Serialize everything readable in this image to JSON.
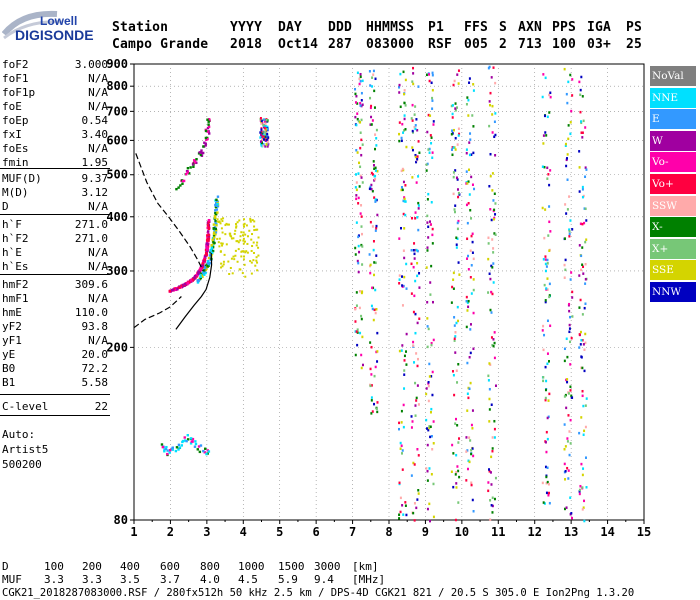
{
  "logo": {
    "line1": "Lowell",
    "line2": "DIGISONDE"
  },
  "header": {
    "labels": [
      "Station",
      "YYYY",
      "DAY",
      "DDD",
      "HHMMSS",
      "P1",
      "FFS",
      "S",
      "AXN",
      "PPS",
      "IGA",
      "PS"
    ],
    "values": [
      "Campo Grande",
      "2018",
      "Oct14",
      "287",
      "083000",
      "RSF",
      "005",
      "2",
      "713",
      "100",
      "03+",
      "25"
    ]
  },
  "params": [
    {
      "name": "foF2",
      "value": "3.000"
    },
    {
      "name": "foF1",
      "value": "N/A"
    },
    {
      "name": "foF1p",
      "value": "N/A"
    },
    {
      "name": "foE",
      "value": "N/A"
    },
    {
      "name": "foEp",
      "value": "0.54"
    },
    {
      "name": "fxI",
      "value": "3.40"
    },
    {
      "name": "foEs",
      "value": "N/A"
    },
    {
      "name": "fmin",
      "value": "1.95"
    },
    {
      "name": "MUF(D)",
      "value": "9.37"
    },
    {
      "name": "M(D)",
      "value": "3.12"
    },
    {
      "name": "D",
      "value": "N/A"
    },
    {
      "name": "h`F",
      "value": "271.0"
    },
    {
      "name": "h`F2",
      "value": "271.0"
    },
    {
      "name": "h`E",
      "value": "N/A"
    },
    {
      "name": "h`Es",
      "value": "N/A"
    },
    {
      "name": "hmF2",
      "value": "309.6"
    },
    {
      "name": "hmF1",
      "value": "N/A"
    },
    {
      "name": "hmE",
      "value": "110.0"
    },
    {
      "name": "yF2",
      "value": "93.8"
    },
    {
      "name": "yF1",
      "value": "N/A"
    },
    {
      "name": "yE",
      "value": "20.0"
    },
    {
      "name": "B0",
      "value": "72.2"
    },
    {
      "name": "B1",
      "value": "5.58"
    },
    {
      "name": "C-level",
      "value": "22"
    }
  ],
  "auto": {
    "line1": "Auto:",
    "line2": "Artist5",
    "line3": "500200"
  },
  "legend": [
    {
      "label": "NoVal",
      "color": "#7f7f7f"
    },
    {
      "label": "NNE",
      "color": "#00e0ff"
    },
    {
      "label": "E",
      "color": "#3399ff"
    },
    {
      "label": "W",
      "color": "#a000a0"
    },
    {
      "label": "Vo-",
      "color": "#ff00aa"
    },
    {
      "label": "Vo+",
      "color": "#ff0040"
    },
    {
      "label": "SSW",
      "color": "#ffaaaa"
    },
    {
      "label": "X-",
      "color": "#008000"
    },
    {
      "label": "X+",
      "color": "#77c777"
    },
    {
      "label": "SSE",
      "color": "#d4d400"
    },
    {
      "label": "NNW",
      "color": "#0000c0"
    }
  ],
  "footer": {
    "d_label": "D",
    "d_values": [
      "100",
      "200",
      "400",
      "600",
      "800",
      "1000",
      "1500",
      "3000"
    ],
    "d_unit": "[km]",
    "muf_label": "MUF",
    "muf_values": [
      "3.3",
      "3.3",
      "3.5",
      "3.7",
      "4.0",
      "4.5",
      "5.9",
      "9.4"
    ],
    "muf_unit": "[MHz]",
    "info": "CGK21_2018287083000.RSF / 280fx512h 50 kHz 2.5 km / DPS-4D CGK21 821 / 20.5 S 305.0 E Ion2Png 1.3.20"
  },
  "chart_data": {
    "type": "scatter",
    "x_ticks": [
      1,
      2,
      3,
      4,
      5,
      6,
      7,
      8,
      9,
      10,
      11,
      12,
      13,
      14,
      15
    ],
    "y_ticks": [
      80,
      200,
      300,
      400,
      500,
      600,
      700,
      800,
      900
    ],
    "xlim": [
      1,
      15
    ],
    "ylim": [
      80,
      900
    ],
    "y_scale": "log",
    "grid": true,
    "profile_curve": [
      [
        2.15,
        220
      ],
      [
        2.4,
        235
      ],
      [
        2.65,
        250
      ],
      [
        2.85,
        262
      ],
      [
        2.98,
        272
      ],
      [
        3.08,
        290
      ],
      [
        3.13,
        310
      ],
      [
        3.12,
        330
      ]
    ],
    "true_height_profile": [
      [
        1.05,
        560
      ],
      [
        1.35,
        480
      ],
      [
        1.65,
        430
      ],
      [
        1.95,
        400
      ],
      [
        2.25,
        370
      ],
      [
        2.55,
        340
      ],
      [
        2.75,
        318
      ],
      [
        2.9,
        300
      ]
    ],
    "trace_o_mode": [
      [
        1.95,
        271
      ],
      [
        2.15,
        275
      ],
      [
        2.35,
        280
      ],
      [
        2.55,
        287
      ],
      [
        2.7,
        295
      ],
      [
        2.85,
        310
      ],
      [
        2.95,
        330
      ],
      [
        3.0,
        355
      ],
      [
        3.02,
        400
      ]
    ],
    "trace_x_mode": [
      [
        2.7,
        285
      ],
      [
        2.9,
        300
      ],
      [
        3.05,
        320
      ],
      [
        3.15,
        350
      ],
      [
        3.22,
        400
      ],
      [
        3.25,
        450
      ]
    ],
    "trace_hooks": [
      [
        2.15,
        460
      ],
      [
        2.5,
        520
      ],
      [
        2.8,
        560
      ],
      [
        2.95,
        610
      ],
      [
        3.05,
        680
      ]
    ],
    "interference_bands": [
      {
        "x": 4.55,
        "y0": 585,
        "y1": 680
      },
      {
        "x": 7.15,
        "y0": 180,
        "y1": 900
      },
      {
        "x": 7.55,
        "y0": 140,
        "y1": 880
      },
      {
        "x": 8.35,
        "y0": 80,
        "y1": 900
      },
      {
        "x": 8.7,
        "y0": 80,
        "y1": 900
      },
      {
        "x": 9.1,
        "y0": 80,
        "y1": 900
      },
      {
        "x": 9.8,
        "y0": 80,
        "y1": 900
      },
      {
        "x": 10.2,
        "y0": 80,
        "y1": 900
      },
      {
        "x": 10.8,
        "y0": 80,
        "y1": 900
      },
      {
        "x": 12.3,
        "y0": 80,
        "y1": 900
      },
      {
        "x": 12.9,
        "y0": 80,
        "y1": 900
      },
      {
        "x": 13.3,
        "y0": 80,
        "y1": 900
      }
    ],
    "es_layer_points": [
      [
        1.75,
        120
      ],
      [
        1.9,
        115
      ],
      [
        2.2,
        118
      ],
      [
        2.45,
        125
      ],
      [
        2.75,
        118
      ],
      [
        3.0,
        115
      ]
    ]
  }
}
